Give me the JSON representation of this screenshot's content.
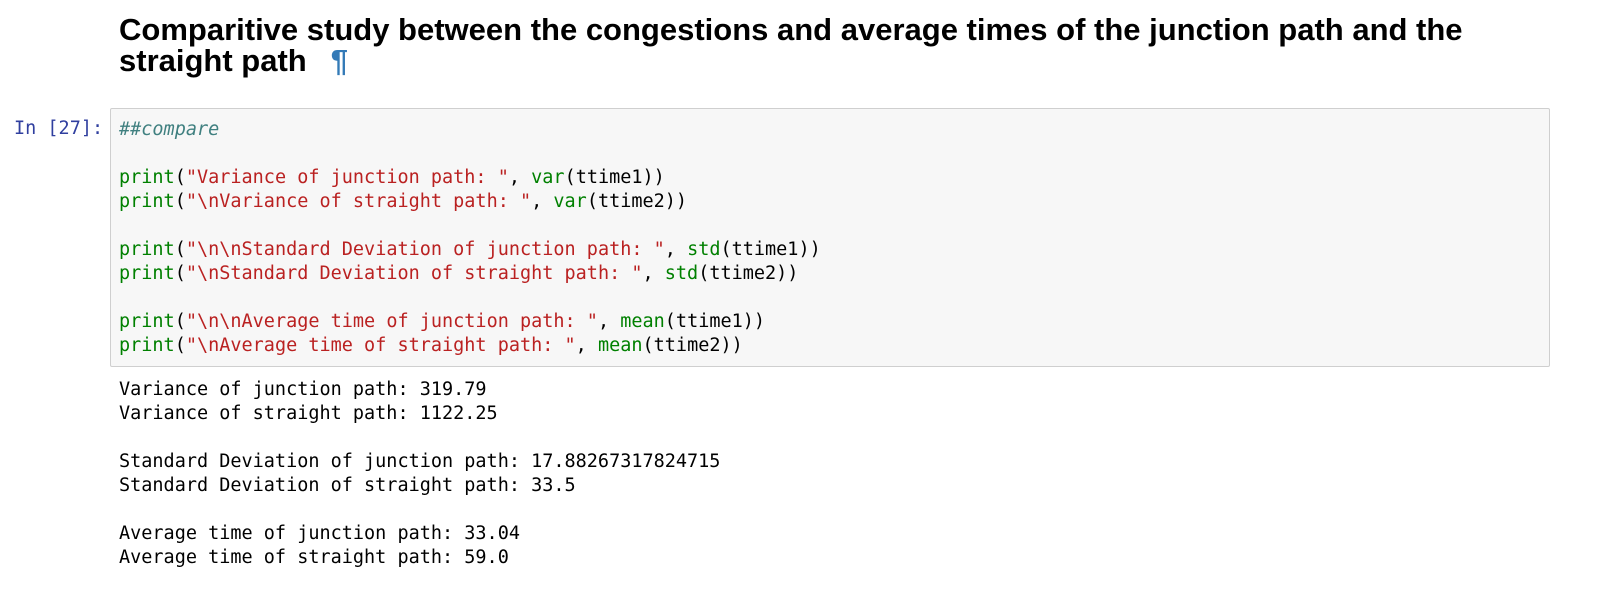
{
  "heading": {
    "title": "Comparitive study between the congestions and average times of the junction path and the straight path",
    "anchor": "¶"
  },
  "cell": {
    "prompt": "In [27]:",
    "code": {
      "blocks": [
        [
          [
            {
              "text": "##compare",
              "color": "#408080",
              "italic": true
            }
          ]
        ],
        [
          [
            {
              "text": "print",
              "color": "#008000"
            },
            {
              "text": "(",
              "color": "#000000"
            },
            {
              "text": "\"Variance of junction path: \"",
              "color": "#BA2121"
            },
            {
              "text": ", ",
              "color": "#000000"
            },
            {
              "text": "var",
              "color": "#008000"
            },
            {
              "text": "(ttime1))",
              "color": "#000000"
            }
          ],
          [
            {
              "text": "print",
              "color": "#008000"
            },
            {
              "text": "(",
              "color": "#000000"
            },
            {
              "text": "\"\\nVariance of straight path: \"",
              "color": "#BA2121"
            },
            {
              "text": ", ",
              "color": "#000000"
            },
            {
              "text": "var",
              "color": "#008000"
            },
            {
              "text": "(ttime2))",
              "color": "#000000"
            }
          ]
        ],
        [
          [
            {
              "text": "print",
              "color": "#008000"
            },
            {
              "text": "(",
              "color": "#000000"
            },
            {
              "text": "\"\\n\\nStandard Deviation of junction path: \"",
              "color": "#BA2121"
            },
            {
              "text": ", ",
              "color": "#000000"
            },
            {
              "text": "std",
              "color": "#008000"
            },
            {
              "text": "(ttime1))",
              "color": "#000000"
            }
          ],
          [
            {
              "text": "print",
              "color": "#008000"
            },
            {
              "text": "(",
              "color": "#000000"
            },
            {
              "text": "\"\\nStandard Deviation of straight path: \"",
              "color": "#BA2121"
            },
            {
              "text": ", ",
              "color": "#000000"
            },
            {
              "text": "std",
              "color": "#008000"
            },
            {
              "text": "(ttime2))",
              "color": "#000000"
            }
          ]
        ],
        [
          [
            {
              "text": "print",
              "color": "#008000"
            },
            {
              "text": "(",
              "color": "#000000"
            },
            {
              "text": "\"\\n\\nAverage time of junction path: \"",
              "color": "#BA2121"
            },
            {
              "text": ", ",
              "color": "#000000"
            },
            {
              "text": "mean",
              "color": "#008000"
            },
            {
              "text": "(ttime1))",
              "color": "#000000"
            }
          ],
          [
            {
              "text": "print",
              "color": "#008000"
            },
            {
              "text": "(",
              "color": "#000000"
            },
            {
              "text": "\"\\nAverage time of straight path: \"",
              "color": "#BA2121"
            },
            {
              "text": ", ",
              "color": "#000000"
            },
            {
              "text": "mean",
              "color": "#008000"
            },
            {
              "text": "(ttime2))",
              "color": "#000000"
            }
          ]
        ]
      ]
    },
    "output": {
      "groups": [
        [
          "Variance of junction path: 319.79",
          "Variance of straight path: 1122.25"
        ],
        [
          "Standard Deviation of junction path: 17.88267317824715",
          "Standard Deviation of straight path: 33.5"
        ],
        [
          "Average time of junction path: 33.04",
          "Average time of straight path: 59.0"
        ]
      ]
    }
  }
}
